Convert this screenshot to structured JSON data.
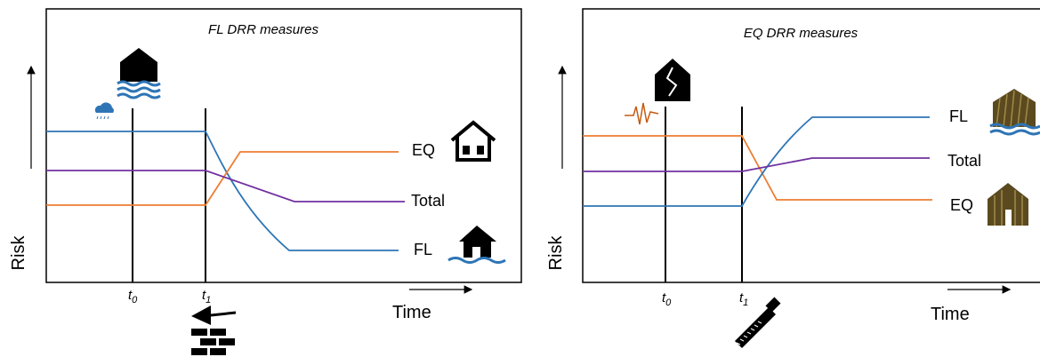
{
  "panels": [
    {
      "title": "FL DRR measures",
      "y_label": "Risk",
      "x_label": "Time",
      "t0": {
        "base": "t",
        "sub": "0"
      },
      "t1": {
        "base": "t",
        "sub": "1"
      },
      "labels": {
        "eq": "EQ",
        "total": "Total",
        "fl": "FL"
      }
    },
    {
      "title": "EQ DRR measures",
      "y_label": "Risk",
      "x_label": "Time",
      "t0": {
        "base": "t",
        "sub": "0"
      },
      "t1": {
        "base": "t",
        "sub": "1"
      },
      "labels": {
        "fl": "FL",
        "total": "Total",
        "eq": "EQ"
      }
    }
  ]
}
